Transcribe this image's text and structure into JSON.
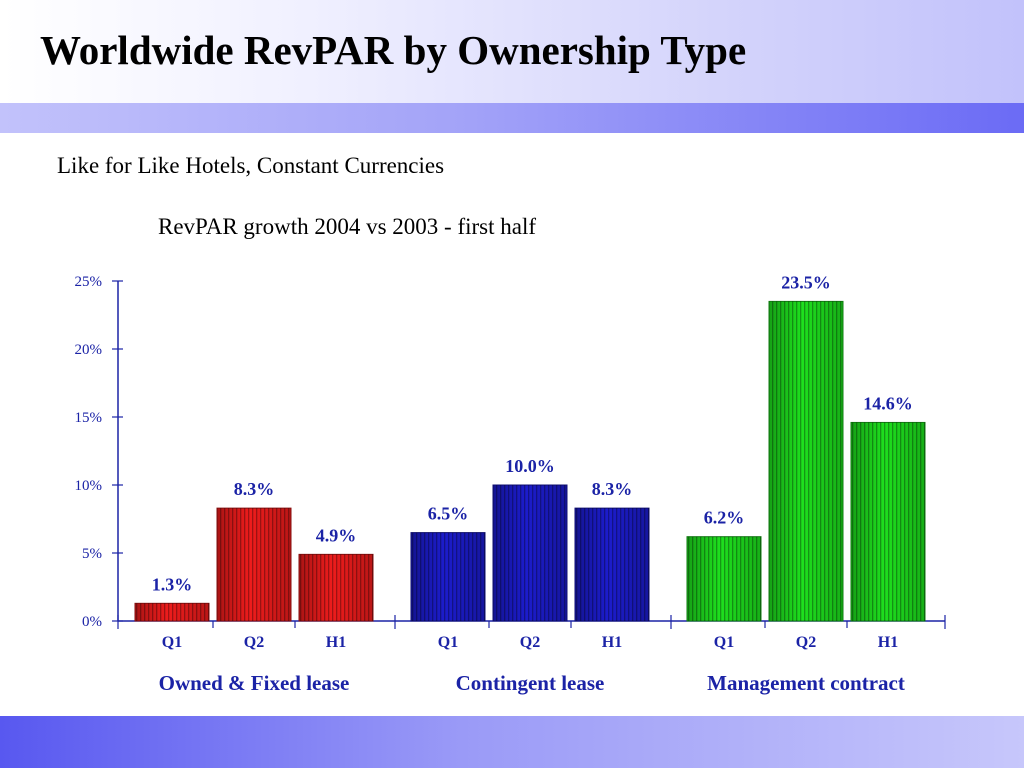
{
  "page": {
    "title": "Worldwide RevPAR by Ownership Type",
    "subtitle": "Like for Like Hotels, Constant Currencies"
  },
  "colors": {
    "axis": "#1b23a6",
    "group_colors": [
      "#ee1c1c",
      "#1c1ccc",
      "#1ee01e"
    ]
  },
  "chart_data": {
    "type": "bar",
    "title": "RevPAR growth 2004 vs 2003 - first half",
    "xlabel": "",
    "ylabel": "",
    "ylim": [
      0,
      25
    ],
    "y_ticks": [
      "0%",
      "5%",
      "10%",
      "15%",
      "20%",
      "25%"
    ],
    "grid": false,
    "groups": [
      {
        "name": "Owned & Fixed lease",
        "categories": [
          "Q1",
          "Q2",
          "H1"
        ],
        "values": [
          1.3,
          8.3,
          4.9
        ],
        "labels": [
          "1.3%",
          "8.3%",
          "4.9%"
        ]
      },
      {
        "name": "Contingent lease",
        "categories": [
          "Q1",
          "Q2",
          "H1"
        ],
        "values": [
          6.5,
          10.0,
          8.3
        ],
        "labels": [
          "6.5%",
          "10.0%",
          "8.3%"
        ]
      },
      {
        "name": "Management contract",
        "categories": [
          "Q1",
          "Q2",
          "H1"
        ],
        "values": [
          6.2,
          23.5,
          14.6
        ],
        "labels": [
          "6.2%",
          "23.5%",
          "14.6%"
        ]
      }
    ]
  }
}
